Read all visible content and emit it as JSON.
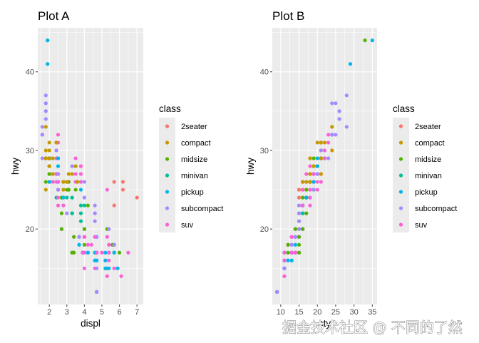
{
  "watermark": "掘金技术社区 @ 不同的了然",
  "class_colors": {
    "2seater": "#F8766D",
    "compact": "#C49A00",
    "midsize": "#53B400",
    "minivan": "#00C094",
    "pickup": "#00B6EB",
    "subcompact": "#A58AFF",
    "suv": "#FB61D7"
  },
  "mpg": {
    "class": [
      "compact",
      "compact",
      "compact",
      "compact",
      "compact",
      "compact",
      "compact",
      "midsize",
      "compact",
      "compact",
      "compact",
      "compact",
      "compact",
      "compact",
      "compact",
      "midsize",
      "midsize",
      "midsize",
      "midsize",
      "midsize",
      "midsize",
      "midsize",
      "midsize",
      "2seater",
      "2seater",
      "2seater",
      "2seater",
      "2seater",
      "suv",
      "suv",
      "suv",
      "suv",
      "suv",
      "suv",
      "suv",
      "suv",
      "suv",
      "minivan",
      "minivan",
      "minivan",
      "minivan",
      "minivan",
      "minivan",
      "minivan",
      "minivan",
      "minivan",
      "minivan",
      "minivan",
      "pickup",
      "pickup",
      "pickup",
      "pickup",
      "pickup",
      "pickup",
      "pickup",
      "pickup",
      "pickup",
      "suv",
      "suv",
      "suv",
      "suv",
      "suv",
      "suv",
      "suv",
      "suv",
      "pickup",
      "pickup",
      "pickup",
      "pickup",
      "pickup",
      "pickup",
      "pickup",
      "pickup",
      "pickup",
      "pickup",
      "suv",
      "suv",
      "suv",
      "suv",
      "suv",
      "suv",
      "suv",
      "suv",
      "pickup",
      "pickup",
      "pickup",
      "pickup",
      "pickup",
      "pickup",
      "pickup",
      "pickup",
      "pickup",
      "subcompact",
      "subcompact",
      "subcompact",
      "subcompact",
      "subcompact",
      "subcompact",
      "subcompact",
      "subcompact",
      "subcompact",
      "subcompact",
      "subcompact",
      "subcompact",
      "subcompact",
      "subcompact",
      "subcompact",
      "subcompact",
      "subcompact",
      "subcompact",
      "subcompact",
      "subcompact",
      "subcompact",
      "subcompact",
      "subcompact",
      "midsize",
      "midsize",
      "midsize",
      "midsize",
      "midsize",
      "midsize",
      "midsize",
      "subcompact",
      "subcompact",
      "subcompact",
      "subcompact",
      "subcompact",
      "subcompact",
      "subcompact",
      "suv",
      "suv",
      "suv",
      "suv",
      "suv",
      "suv",
      "suv",
      "suv",
      "suv",
      "suv",
      "suv",
      "suv",
      "suv",
      "suv",
      "suv",
      "suv",
      "suv",
      "suv",
      "suv",
      "midsize",
      "midsize",
      "midsize",
      "midsize",
      "midsize",
      "midsize",
      "midsize",
      "suv",
      "suv",
      "suv",
      "suv",
      "suv",
      "suv",
      "suv",
      "suv",
      "suv",
      "suv",
      "suv",
      "suv",
      "suv",
      "suv",
      "suv",
      "suv",
      "subcompact",
      "subcompact",
      "subcompact",
      "subcompact",
      "suv",
      "suv",
      "suv",
      "suv",
      "suv",
      "suv",
      "compact",
      "compact",
      "compact",
      "compact",
      "compact",
      "compact",
      "compact",
      "compact",
      "compact",
      "compact",
      "compact",
      "compact",
      "compact",
      "compact",
      "subcompact",
      "subcompact",
      "subcompact",
      "subcompact",
      "subcompact",
      "subcompact",
      "midsize",
      "midsize",
      "midsize",
      "midsize",
      "midsize",
      "midsize",
      "midsize",
      "midsize",
      "midsize",
      "midsize",
      "midsize",
      "midsize",
      "midsize",
      "suv",
      "suv",
      "suv",
      "suv",
      "suv",
      "suv",
      "pickup",
      "pickup",
      "pickup",
      "pickup",
      "pickup",
      "pickup",
      "pickup",
      "compact",
      "compact",
      "compact",
      "compact",
      "compact",
      "compact",
      "compact",
      "compact",
      "compact",
      "compact",
      "compact",
      "compact",
      "compact",
      "compact",
      "compact",
      "compact",
      "compact",
      "compact",
      "compact",
      "compact",
      "compact",
      "compact",
      "compact",
      "compact",
      "compact",
      "compact",
      "compact",
      "midsize",
      "midsize",
      "midsize",
      "midsize",
      "midsize",
      "midsize",
      "midsize",
      "midsize",
      "midsize",
      "midsize"
    ],
    "displ": [
      1.8,
      1.8,
      2,
      2,
      2.8,
      2.8,
      3.1,
      1.8,
      1.8,
      2,
      2,
      2.8,
      2.8,
      3.1,
      3.1,
      2.8,
      3.1,
      4.2,
      5.3,
      5.3,
      5.3,
      5.7,
      6,
      5.7,
      5.7,
      6.2,
      6.2,
      7,
      5.3,
      5.3,
      5.7,
      6.5,
      2.4,
      2.4,
      3.1,
      3.5,
      3.6,
      2.4,
      3,
      3.3,
      3.3,
      3.3,
      3.3,
      3.3,
      3.8,
      3.8,
      3.8,
      4,
      3.7,
      3.7,
      3.9,
      3.9,
      4.7,
      4.7,
      4.7,
      5.2,
      5.2,
      3.9,
      4.7,
      4.7,
      4.7,
      5.2,
      5.7,
      5.9,
      4.7,
      4.7,
      4.7,
      4.7,
      4.7,
      4.7,
      5.2,
      5.2,
      5.7,
      5.9,
      4.6,
      5.4,
      5.4,
      4,
      4,
      4,
      4,
      4.6,
      5,
      4.2,
      4.2,
      4.6,
      4.6,
      4.6,
      5.4,
      5.4,
      3.8,
      3.8,
      4,
      4,
      4.6,
      4.6,
      4.6,
      4.6,
      5.4,
      1.6,
      1.6,
      1.6,
      1.6,
      1.6,
      1.8,
      1.8,
      1.8,
      2,
      2.4,
      2.4,
      2.4,
      2.4,
      2.5,
      2.5,
      3.3,
      2,
      2,
      2,
      2,
      2.7,
      2.7,
      2.7,
      3,
      3.7,
      4,
      4.7,
      4.7,
      4.7,
      5.7,
      6.1,
      4,
      4.2,
      4.4,
      4.6,
      5.4,
      5.4,
      5.4,
      4,
      4,
      4.6,
      5,
      2.4,
      2.4,
      2.5,
      2.5,
      3.5,
      3.5,
      3,
      3,
      3.5,
      3.3,
      3.3,
      4,
      5.6,
      3.1,
      3.8,
      3.8,
      3.8,
      5.3,
      2.5,
      2.5,
      2.5,
      2.5,
      2.5,
      2.5,
      2.2,
      2.2,
      2.5,
      2.5,
      2.5,
      2.5,
      2.5,
      2.5,
      2.7,
      2.7,
      3.4,
      3.4,
      4,
      4.7,
      2.2,
      2.2,
      2.4,
      2.4,
      3,
      3,
      3.5,
      2.2,
      2.2,
      2.4,
      2.4,
      3,
      3,
      3.3,
      1.8,
      1.8,
      1.8,
      1.8,
      1.8,
      4.7,
      5.7,
      2.7,
      2.7,
      2.7,
      3.4,
      3.4,
      4,
      4,
      2,
      2,
      2,
      2,
      2.8,
      1.9,
      2,
      2,
      2,
      2,
      2.5,
      2.5,
      2.8,
      2.8,
      1.9,
      1.9,
      2,
      2,
      2.5,
      2.5,
      1.8,
      1.8,
      2,
      2,
      2.8,
      2.8,
      3.6
    ],
    "cty": [
      18,
      21,
      20,
      21,
      16,
      18,
      18,
      18,
      16,
      20,
      19,
      15,
      17,
      17,
      15,
      15,
      17,
      16,
      14,
      11,
      14,
      13,
      12,
      16,
      15,
      16,
      15,
      15,
      14,
      11,
      11,
      14,
      19,
      22,
      18,
      18,
      17,
      18,
      17,
      16,
      16,
      17,
      17,
      11,
      15,
      15,
      16,
      16,
      15,
      14,
      13,
      14,
      14,
      14,
      9,
      11,
      11,
      13,
      13,
      9,
      13,
      11,
      13,
      11,
      12,
      9,
      13,
      13,
      12,
      9,
      11,
      11,
      13,
      11,
      11,
      11,
      12,
      14,
      15,
      14,
      13,
      13,
      13,
      14,
      14,
      13,
      13,
      13,
      11,
      13,
      18,
      18,
      17,
      16,
      15,
      15,
      15,
      15,
      14,
      28,
      24,
      25,
      23,
      24,
      26,
      25,
      24,
      21,
      18,
      18,
      21,
      21,
      18,
      18,
      19,
      19,
      19,
      20,
      20,
      17,
      16,
      17,
      17,
      15,
      15,
      14,
      9,
      14,
      13,
      11,
      11,
      12,
      12,
      11,
      11,
      11,
      12,
      14,
      13,
      13,
      13,
      21,
      19,
      23,
      23,
      19,
      19,
      18,
      19,
      19,
      14,
      15,
      14,
      12,
      18,
      16,
      17,
      18,
      16,
      18,
      18,
      20,
      19,
      20,
      18,
      21,
      19,
      19,
      19,
      20,
      20,
      19,
      20,
      15,
      16,
      15,
      15,
      16,
      14,
      21,
      21,
      21,
      21,
      18,
      18,
      19,
      21,
      21,
      21,
      22,
      18,
      18,
      18,
      24,
      24,
      26,
      28,
      26,
      11,
      13,
      15,
      16,
      17,
      15,
      15,
      15,
      16,
      21,
      19,
      21,
      22,
      17,
      33,
      21,
      19,
      22,
      21,
      21,
      21,
      16,
      17,
      35,
      29,
      21,
      19,
      20,
      20,
      21,
      18,
      19,
      21,
      16,
      18,
      17
    ],
    "hwy": [
      29,
      29,
      31,
      30,
      26,
      26,
      27,
      26,
      25,
      28,
      27,
      25,
      25,
      25,
      25,
      24,
      25,
      23,
      20,
      15,
      20,
      17,
      17,
      26,
      23,
      26,
      25,
      24,
      19,
      14,
      15,
      17,
      27,
      30,
      26,
      29,
      26,
      24,
      24,
      22,
      22,
      24,
      24,
      17,
      22,
      21,
      23,
      23,
      19,
      18,
      17,
      17,
      19,
      19,
      12,
      17,
      15,
      17,
      17,
      12,
      17,
      16,
      18,
      15,
      16,
      12,
      17,
      17,
      16,
      12,
      15,
      16,
      17,
      15,
      17,
      17,
      18,
      17,
      19,
      17,
      19,
      19,
      17,
      17,
      17,
      16,
      16,
      17,
      15,
      17,
      26,
      25,
      26,
      24,
      21,
      22,
      23,
      22,
      20,
      33,
      32,
      32,
      29,
      32,
      34,
      36,
      36,
      29,
      26,
      27,
      30,
      31,
      26,
      26,
      28,
      26,
      29,
      28,
      27,
      24,
      24,
      24,
      22,
      19,
      20,
      17,
      12,
      19,
      18,
      14,
      15,
      18,
      18,
      15,
      17,
      16,
      18,
      17,
      19,
      19,
      17,
      29,
      27,
      31,
      32,
      27,
      26,
      26,
      25,
      25,
      17,
      17,
      20,
      18,
      26,
      26,
      27,
      28,
      25,
      25,
      24,
      27,
      25,
      26,
      23,
      26,
      26,
      26,
      26,
      25,
      27,
      25,
      27,
      20,
      20,
      19,
      17,
      20,
      17,
      29,
      27,
      31,
      31,
      26,
      26,
      28,
      27,
      29,
      31,
      31,
      26,
      26,
      27,
      30,
      33,
      35,
      37,
      35,
      15,
      18,
      20,
      20,
      22,
      17,
      19,
      18,
      20,
      29,
      26,
      29,
      29,
      24,
      44,
      29,
      26,
      29,
      29,
      29,
      29,
      23,
      24,
      44,
      41,
      29,
      26,
      28,
      29,
      29,
      29,
      28,
      29,
      26,
      26,
      26
    ]
  },
  "chart_data": [
    {
      "type": "scatter",
      "title": "Plot A",
      "xlabel": "displ",
      "ylabel": "hwy",
      "x_field": "displ",
      "y_field": "hwy",
      "color_field": "class",
      "xlim": [
        1.34,
        7.36
      ],
      "ylim": [
        10.4,
        45.6
      ],
      "xticks": [
        2,
        3,
        4,
        5,
        6,
        7
      ],
      "xtick_labels": [
        "2",
        "3",
        "4",
        "5",
        "6",
        "7"
      ],
      "yticks": [
        20,
        30,
        40
      ],
      "ytick_labels": [
        "20",
        "30",
        "40"
      ],
      "grid": true,
      "legend": {
        "title": "class",
        "position": "right",
        "entries": [
          "2seater",
          "compact",
          "midsize",
          "minivan",
          "pickup",
          "subcompact",
          "suv"
        ]
      }
    },
    {
      "type": "scatter",
      "title": "Plot B",
      "xlabel": "cty",
      "ylabel": "hwy",
      "x_field": "cty",
      "y_field": "hwy",
      "color_field": "class",
      "xlim": [
        7.7,
        36.3
      ],
      "ylim": [
        10.4,
        45.6
      ],
      "xticks": [
        10,
        15,
        20,
        25,
        30,
        35
      ],
      "xtick_labels": [
        "10",
        "15",
        "20",
        "25",
        "30",
        "35"
      ],
      "yticks": [
        20,
        30,
        40
      ],
      "ytick_labels": [
        "20",
        "30",
        "40"
      ],
      "grid": true,
      "legend": {
        "title": "class",
        "position": "right",
        "entries": [
          "2seater",
          "compact",
          "midsize",
          "minivan",
          "pickup",
          "subcompact",
          "suv"
        ]
      }
    }
  ]
}
